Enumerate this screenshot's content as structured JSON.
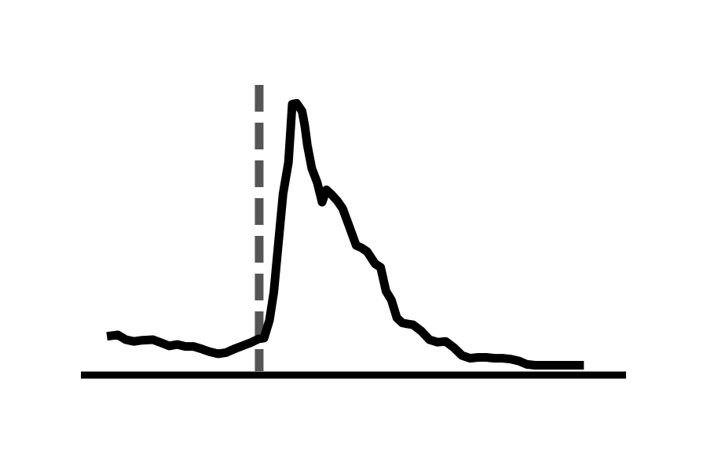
{
  "chart_data": {
    "type": "line",
    "title": "",
    "xlabel": "",
    "ylabel": "",
    "grid": false,
    "legend": "none",
    "xlim": [
      0,
      100
    ],
    "ylim": [
      0,
      100
    ],
    "series": [
      {
        "color": "#000000",
        "x": [
          4.5,
          6.5,
          8.0,
          9.5,
          11.0,
          13.0,
          14.5,
          16.0,
          17.5,
          19.0,
          20.5,
          22.0,
          23.5,
          25.0,
          26.5,
          28.0,
          29.5,
          31.0,
          32.5,
          33.5,
          34.5,
          35.3,
          36.0,
          37.0,
          38.0,
          38.7,
          39.5,
          40.5,
          41.0,
          41.5,
          42.3,
          43.3,
          44.2,
          45.0,
          46.0,
          47.0,
          48.0,
          49.0,
          50.5,
          51.5,
          52.5,
          54.0,
          55.0,
          56.0,
          57.0,
          58.0,
          59.0,
          60.0,
          61.0,
          62.5,
          64.0,
          65.5,
          67.0,
          68.5,
          70.0,
          71.5,
          73.0,
          74.5,
          76.0,
          77.5,
          79.0,
          80.5,
          82.0,
          83.5,
          85.0,
          86.5,
          88.0,
          89.5,
          91.0,
          92.5
        ],
        "y": [
          13.8,
          14.3,
          12.6,
          12.0,
          12.4,
          12.6,
          11.5,
          10.4,
          10.9,
          10.2,
          10.2,
          9.3,
          8.3,
          7.6,
          8.0,
          9.3,
          10.4,
          11.5,
          12.9,
          13.2,
          19.5,
          29.6,
          44.0,
          64.5,
          75.8,
          96.5,
          96.8,
          94.0,
          89.0,
          81.8,
          73.6,
          68.6,
          61.6,
          66.0,
          64.2,
          62.1,
          59.3,
          54.1,
          46.2,
          45.3,
          44.0,
          39.6,
          38.4,
          29.9,
          26.7,
          20.4,
          18.6,
          18.2,
          17.9,
          15.7,
          12.6,
          11.7,
          12.0,
          9.8,
          7.0,
          6.0,
          6.3,
          6.3,
          6.0,
          6.0,
          5.7,
          5.0,
          3.8,
          3.5,
          3.5,
          3.5,
          3.5,
          3.5,
          3.5,
          3.5
        ]
      }
    ],
    "reference_lines": [
      {
        "orientation": "vertical",
        "x": 32.6,
        "style": "dashed",
        "color": "#555555"
      }
    ],
    "baseline": {
      "color": "#000000"
    }
  }
}
